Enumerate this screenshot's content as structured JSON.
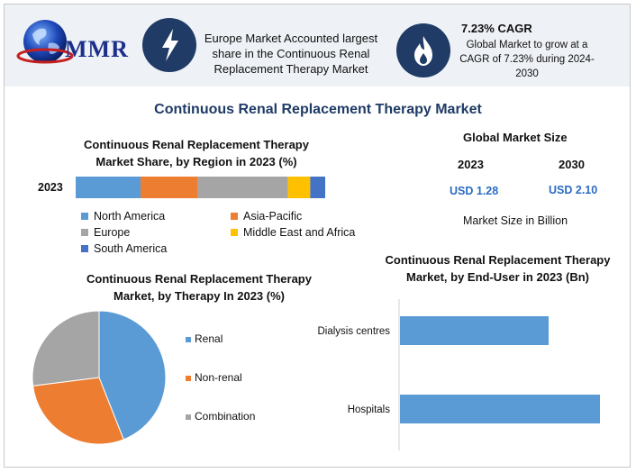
{
  "header": {
    "logo_text": "MMR",
    "stat_europe": "Europe Market Accounted largest share in the Continuous Renal Replacement Therapy Market",
    "cagr_title": "7.23% CAGR",
    "cagr_text": "Global Market to grow at a CAGR of 7.23% during 2024-2030",
    "icons": [
      "lightning-icon",
      "flame-icon"
    ]
  },
  "title": "Continuous Renal Replacement Therapy Market",
  "global_market": {
    "title": "Global Market Size",
    "year_a": "2023",
    "year_b": "2030",
    "value_a": "USD 1.28",
    "value_b": "USD 2.10",
    "note": "Market Size in Billion"
  },
  "colors": {
    "blue": "#5b9bd5",
    "orange": "#ed7d31",
    "gray": "#a5a5a5",
    "yellow": "#ffc000",
    "dark_blue": "#4472c4",
    "navy": "#1f3b66"
  },
  "chart_data": [
    {
      "type": "bar",
      "orientation": "horizontal-stacked",
      "title": "Continuous Renal Replacement Therapy Market Share, by Region in 2023 (%)",
      "categories": [
        "2023"
      ],
      "series": [
        {
          "name": "North America",
          "values": [
            26
          ],
          "color": "#5b9bd5"
        },
        {
          "name": "Asia-Pacific",
          "values": [
            23
          ],
          "color": "#ed7d31"
        },
        {
          "name": "Europe",
          "values": [
            36
          ],
          "color": "#a5a5a5"
        },
        {
          "name": "Middle East and Africa",
          "values": [
            9
          ],
          "color": "#ffc000"
        },
        {
          "name": "South America",
          "values": [
            6
          ],
          "color": "#4472c4"
        }
      ],
      "legend": "bottom"
    },
    {
      "type": "pie",
      "title": "Continuous Renal Replacement Therapy Market, by Therapy In 2023 (%)",
      "labels": [
        "Renal",
        "Non-renal",
        "Combination"
      ],
      "values": [
        44,
        29,
        27
      ],
      "colors": [
        "#5b9bd5",
        "#ed7d31",
        "#a5a5a5"
      ],
      "legend": "right"
    },
    {
      "type": "bar",
      "orientation": "horizontal",
      "title": "Continuous Renal Replacement Therapy Market, by End-User in 2023 (Bn)",
      "categories": [
        "Dialysis centres",
        "Hospitals"
      ],
      "values": [
        0.55,
        0.74
      ],
      "xlim": [
        0,
        0.8
      ],
      "color": "#5b9bd5"
    }
  ]
}
